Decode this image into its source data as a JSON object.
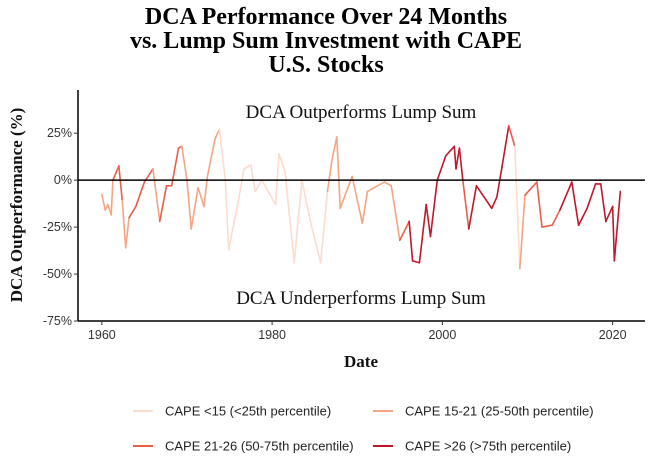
{
  "chart_data": {
    "type": "line",
    "title": [
      "DCA Performance Over 24 Months",
      "vs. Lump Sum Investment with CAPE",
      "U.S. Stocks"
    ],
    "xlabel": "Date",
    "ylabel": "DCA Outperformance (%)",
    "xlim": [
      1957.2,
      2023.8
    ],
    "ylim": [
      -75,
      48
    ],
    "x_ticks": [
      1960,
      1980,
      2000,
      2020
    ],
    "y_ticks": [
      {
        "v": 25,
        "label": "25%"
      },
      {
        "v": 0,
        "label": "0%"
      },
      {
        "v": -25,
        "label": "-25%"
      },
      {
        "v": -50,
        "label": "-50%"
      },
      {
        "v": -75,
        "label": "-75%"
      }
    ],
    "reference_line": 0,
    "annotations": {
      "above": "DCA Outperforms Lump Sum",
      "below": "DCA Underperforms Lump Sum"
    },
    "grid": false,
    "legend_placement": "bottom",
    "groups": [
      {
        "key": 1,
        "name": "CAPE <15 (<25th percentile)",
        "color": "#fbdccd"
      },
      {
        "key": 2,
        "name": "CAPE 15-21 (25-50th percentile)",
        "color": "#f4a582"
      },
      {
        "key": 3,
        "name": "CAPE 21-26 (50-75th percentile)",
        "color": "#e8604a"
      },
      {
        "key": 4,
        "name": "CAPE >26 (>75th percentile)",
        "color": "#c0172b"
      }
    ],
    "points": [
      [
        1960.0,
        -7.6,
        2
      ],
      [
        1960.4,
        -16,
        2
      ],
      [
        1960.7,
        -13,
        2
      ],
      [
        1961.1,
        -18.5,
        2
      ],
      [
        1961.3,
        0,
        2
      ],
      [
        1962.0,
        7.6,
        3
      ],
      [
        1962.4,
        -11,
        3
      ],
      [
        1962.8,
        -36,
        2
      ],
      [
        1963.2,
        -20,
        2
      ],
      [
        1964.0,
        -14,
        3
      ],
      [
        1965.0,
        -1,
        3
      ],
      [
        1966.0,
        6,
        3
      ],
      [
        1966.8,
        -22,
        2
      ],
      [
        1967.6,
        -3,
        3
      ],
      [
        1968.2,
        -3,
        3
      ],
      [
        1969.0,
        17,
        3
      ],
      [
        1969.4,
        18,
        3
      ],
      [
        1970.0,
        0,
        2
      ],
      [
        1970.5,
        -26,
        2
      ],
      [
        1971.3,
        -4,
        2
      ],
      [
        1972.0,
        -14,
        2
      ],
      [
        1972.4,
        2,
        2
      ],
      [
        1973.3,
        22,
        2
      ],
      [
        1973.8,
        27,
        2
      ],
      [
        1974.5,
        0,
        1
      ],
      [
        1974.9,
        -37,
        1
      ],
      [
        1976.0,
        -12,
        1
      ],
      [
        1976.7,
        6,
        1
      ],
      [
        1977.5,
        8,
        1
      ],
      [
        1978.0,
        -6,
        1
      ],
      [
        1978.8,
        0,
        1
      ],
      [
        1980.4,
        -13,
        1
      ],
      [
        1980.8,
        14,
        1
      ],
      [
        1981.5,
        5,
        1
      ],
      [
        1982.6,
        -44,
        1
      ],
      [
        1983.5,
        0,
        1
      ],
      [
        1984.5,
        -22,
        1
      ],
      [
        1985.7,
        -44,
        1
      ],
      [
        1986.5,
        -6,
        1
      ],
      [
        1987.0,
        10,
        2
      ],
      [
        1987.6,
        23,
        2
      ],
      [
        1988.0,
        -15,
        2
      ],
      [
        1989.4,
        2,
        2
      ],
      [
        1990.6,
        -23,
        2
      ],
      [
        1991.2,
        -6,
        2
      ],
      [
        1993.2,
        -1,
        2
      ],
      [
        1994.0,
        -3,
        2
      ],
      [
        1995.0,
        -32,
        2
      ],
      [
        1996.1,
        -22,
        3
      ],
      [
        1996.5,
        -43,
        4
      ],
      [
        1997.3,
        -44,
        4
      ],
      [
        1998.1,
        -13,
        4
      ],
      [
        1998.6,
        -30,
        4
      ],
      [
        1999.4,
        0,
        4
      ],
      [
        2000.4,
        13,
        4
      ],
      [
        2001.4,
        18,
        4
      ],
      [
        2001.6,
        6,
        4
      ],
      [
        2002.0,
        17,
        4
      ],
      [
        2002.4,
        0,
        4
      ],
      [
        2003.1,
        -26,
        3
      ],
      [
        2004.0,
        -3,
        4
      ],
      [
        2005.8,
        -15,
        4
      ],
      [
        2006.4,
        -9,
        4
      ],
      [
        2007.0,
        7,
        4
      ],
      [
        2007.8,
        29,
        4
      ],
      [
        2008.5,
        18,
        3
      ],
      [
        2009.1,
        -47,
        1
      ],
      [
        2009.7,
        -8,
        2
      ],
      [
        2011.1,
        -1,
        3
      ],
      [
        2011.7,
        -25,
        3
      ],
      [
        2012.9,
        -24,
        3
      ],
      [
        2013.8,
        -16,
        3
      ],
      [
        2015.2,
        -1,
        4
      ],
      [
        2016.0,
        -24,
        4
      ],
      [
        2017.0,
        -15,
        4
      ],
      [
        2018.0,
        -2,
        4
      ],
      [
        2018.6,
        -2,
        4
      ],
      [
        2019.2,
        -22,
        4
      ],
      [
        2020.0,
        -14,
        4
      ],
      [
        2020.2,
        -43,
        4
      ],
      [
        2020.9,
        -6,
        4
      ]
    ]
  }
}
